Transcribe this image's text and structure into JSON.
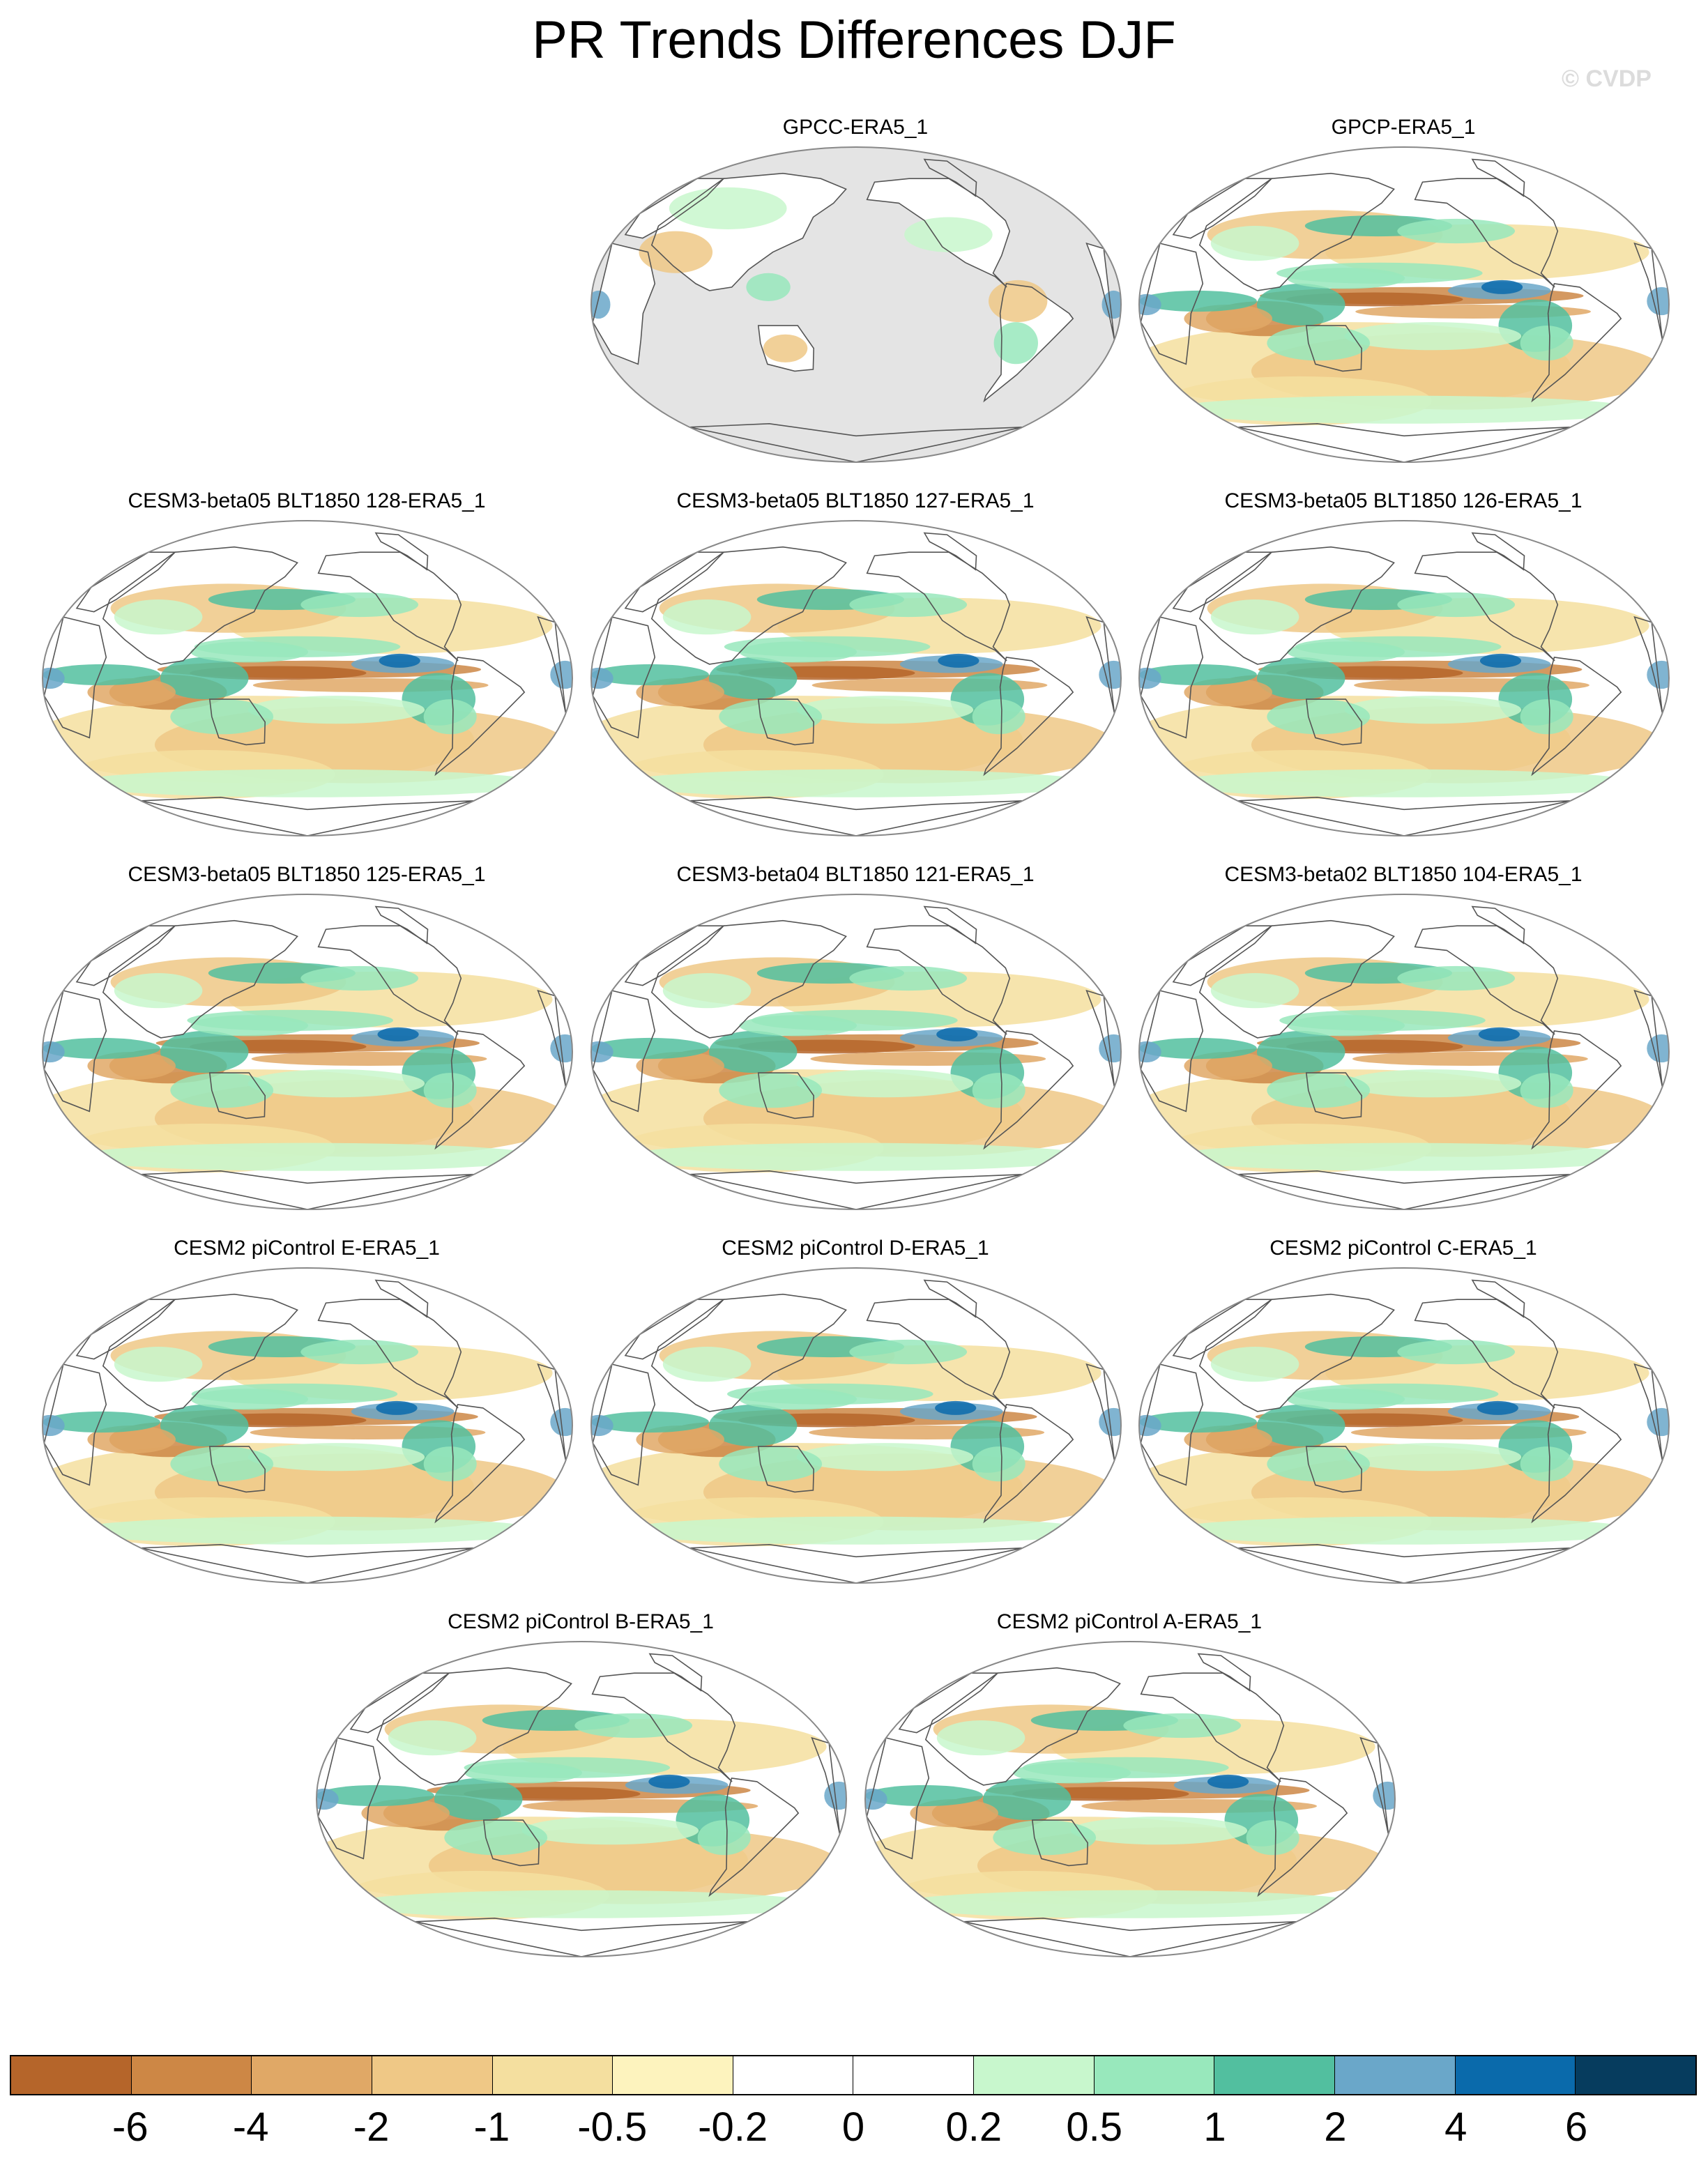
{
  "title": "PR Trends Differences DJF",
  "watermark": "© CVDP",
  "panels": [
    {
      "label": "GPCC-ERA5_1",
      "land_only": true
    },
    {
      "label": "GPCP-ERA5_1"
    },
    {
      "label": "CESM3-beta05 BLT1850 128-ERA5_1"
    },
    {
      "label": "CESM3-beta05 BLT1850 127-ERA5_1"
    },
    {
      "label": "CESM3-beta05 BLT1850 126-ERA5_1"
    },
    {
      "label": "CESM3-beta05 BLT1850 125-ERA5_1"
    },
    {
      "label": "CESM3-beta04 BLT1850 121-ERA5_1"
    },
    {
      "label": "CESM3-beta02 BLT1850 104-ERA5_1"
    },
    {
      "label": "CESM2 piControl E-ERA5_1"
    },
    {
      "label": "CESM2 piControl D-ERA5_1"
    },
    {
      "label": "CESM2 piControl C-ERA5_1"
    },
    {
      "label": "CESM2 piControl B-ERA5_1"
    },
    {
      "label": "CESM2 piControl A-ERA5_1"
    }
  ],
  "colorbar": {
    "colors": [
      "#b5652a",
      "#cd8745",
      "#e0a866",
      "#efc886",
      "#f4df9f",
      "#fdf3be",
      "#ffffff",
      "#ffffff",
      "#c8f7cd",
      "#98e8bc",
      "#52bf9f",
      "#6aa7c9",
      "#0a6aab",
      "#063c5e"
    ],
    "tick_labels": [
      "-6",
      "-4",
      "-2",
      "-1",
      "-0.5",
      "-0.2",
      "0",
      "0.2",
      "0.5",
      "1",
      "2",
      "4",
      "6"
    ]
  },
  "colors": {
    "missing_fill": "#e4e4e4",
    "border": "#888888",
    "coast": "#555555"
  }
}
